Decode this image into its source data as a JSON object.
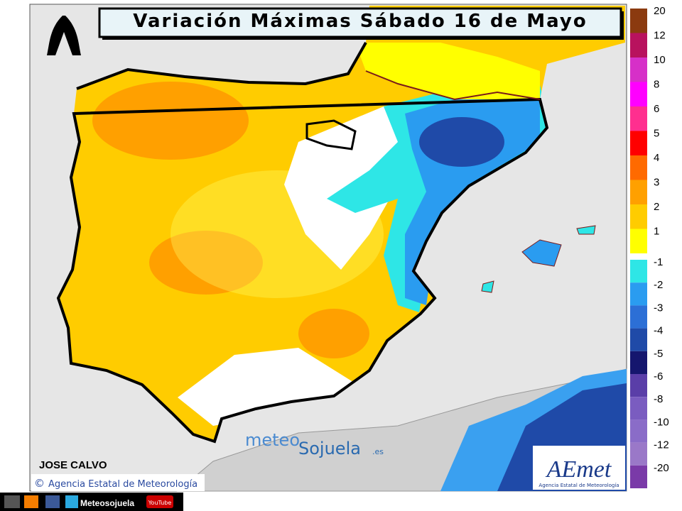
{
  "header": {
    "title": "Variación Máximas Sábado 16 de Mayo"
  },
  "legend": {
    "positive": [
      {
        "value": 20,
        "color": "#8b3a0f"
      },
      {
        "value": 12,
        "color": "#b8125e"
      },
      {
        "value": 10,
        "color": "#d630c8"
      },
      {
        "value": 8,
        "color": "#ff00ff"
      },
      {
        "value": 6,
        "color": "#ff2f8f"
      },
      {
        "value": 5,
        "color": "#ff0000"
      },
      {
        "value": 4,
        "color": "#ff6a00"
      },
      {
        "value": 3,
        "color": "#ffa000"
      },
      {
        "value": 2,
        "color": "#ffcc00"
      },
      {
        "value": 1,
        "color": "#ffff00"
      }
    ],
    "negative": [
      {
        "value": -1,
        "color": "#2ee6e6"
      },
      {
        "value": -2,
        "color": "#2a9cf0"
      },
      {
        "value": -3,
        "color": "#2c6fd6"
      },
      {
        "value": -4,
        "color": "#1f4aa8"
      },
      {
        "value": -5,
        "color": "#15166e"
      },
      {
        "value": -6,
        "color": "#5a3ea8"
      },
      {
        "value": -8,
        "color": "#7a5cc0"
      },
      {
        "value": -10,
        "color": "#8a6cc8"
      },
      {
        "value": -12,
        "color": "#9a78c8"
      },
      {
        "value": -20,
        "color": "#7a3aa8"
      }
    ]
  },
  "credits": {
    "author": "JOSE CALVO",
    "source": "Agencia Estatal de Meteorología",
    "copyright": "©"
  },
  "watermark": {
    "part1": "meteo",
    "part2": "Sojuela",
    "domain": ".es"
  },
  "logo": {
    "name": "AEmet",
    "subtitle": "Agencia Estatal de Meteorología"
  },
  "social": {
    "handle": "Meteosojuela",
    "youtube": "YouTube"
  }
}
